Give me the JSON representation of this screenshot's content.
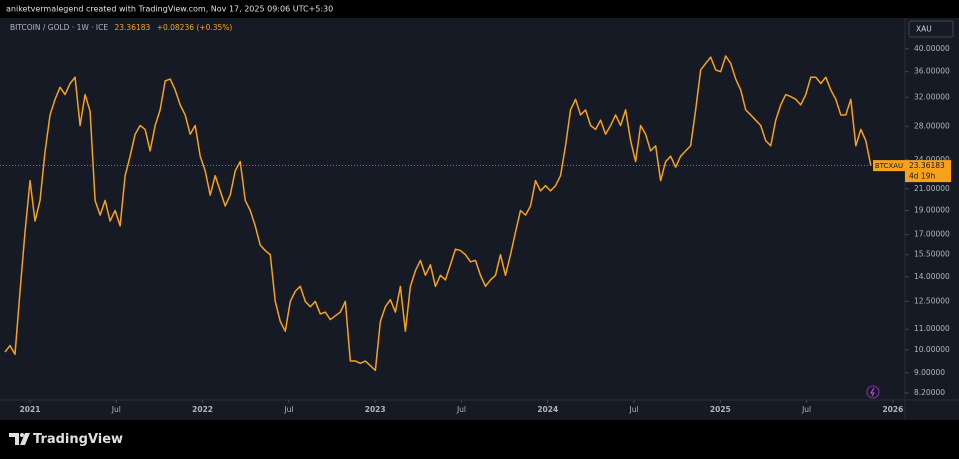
{
  "top_bar": {
    "text": "aniketvermalegend created with TradingView.com, Nov 17, 2025 09:06 UTC+5:30"
  },
  "chart_data": {
    "type": "line",
    "title": "BITCOIN / GOLD · 1W · ICE",
    "header_value": "23.36183",
    "header_change": "+0.08236 (+0.35%)",
    "currency": "XAU",
    "price_tag": {
      "symbol": "BTCXAU",
      "value": "23.36183",
      "countdown": "4d 19h"
    },
    "log_scale": true,
    "grid": false,
    "xlim": [
      2020.826,
      2026.07
    ],
    "xticks": [
      2021,
      {
        "value": 2021.5,
        "label": "Jul"
      },
      2022,
      {
        "value": 2022.5,
        "label": "Jul"
      },
      2023,
      {
        "value": 2023.5,
        "label": "Jul"
      },
      2024,
      {
        "value": 2024.5,
        "label": "Jul"
      },
      2025,
      {
        "value": 2025.5,
        "label": "Jul"
      },
      2026
    ],
    "ylim": [
      7.94,
      46.1
    ],
    "yticks": [
      {
        "value": 8.2,
        "label": "8.20000"
      },
      {
        "value": 9,
        "label": "9.00000"
      },
      {
        "value": 10,
        "label": "10.00000"
      },
      {
        "value": 11,
        "label": "11.00000"
      },
      {
        "value": 12.5,
        "label": "12.50000"
      },
      {
        "value": 14,
        "label": "14.00000"
      },
      {
        "value": 15.5,
        "label": "15.50000"
      },
      {
        "value": 17,
        "label": "17.00000"
      },
      {
        "value": 19,
        "label": "19.00000"
      },
      {
        "value": 21,
        "label": "21.00000"
      },
      {
        "value": 24,
        "label": "24.00000"
      },
      {
        "value": 28,
        "label": "28.00000"
      },
      {
        "value": 32,
        "label": "32.00000"
      },
      {
        "value": 36,
        "label": "36.00000"
      },
      {
        "value": 40,
        "label": "40.00000"
      }
    ],
    "x": [
      2020.855,
      2020.884,
      2020.913,
      2020.942,
      2020.971,
      2021.0,
      2021.029,
      2021.058,
      2021.087,
      2021.116,
      2021.145,
      2021.174,
      2021.203,
      2021.232,
      2021.261,
      2021.29,
      2021.319,
      2021.348,
      2021.377,
      2021.406,
      2021.435,
      2021.464,
      2021.493,
      2021.522,
      2021.551,
      2021.58,
      2021.609,
      2021.638,
      2021.667,
      2021.696,
      2021.725,
      2021.754,
      2021.783,
      2021.812,
      2021.841,
      2021.87,
      2021.899,
      2021.928,
      2021.957,
      2021.986,
      2022.015,
      2022.044,
      2022.073,
      2022.102,
      2022.131,
      2022.16,
      2022.189,
      2022.218,
      2022.247,
      2022.276,
      2022.305,
      2022.334,
      2022.363,
      2022.392,
      2022.421,
      2022.45,
      2022.479,
      2022.508,
      2022.537,
      2022.566,
      2022.595,
      2022.624,
      2022.653,
      2022.682,
      2022.711,
      2022.74,
      2022.769,
      2022.798,
      2022.827,
      2022.856,
      2022.885,
      2022.914,
      2022.943,
      2022.972,
      2023.001,
      2023.03,
      2023.059,
      2023.088,
      2023.117,
      2023.146,
      2023.175,
      2023.204,
      2023.233,
      2023.262,
      2023.291,
      2023.32,
      2023.349,
      2023.378,
      2023.407,
      2023.436,
      2023.465,
      2023.494,
      2023.523,
      2023.552,
      2023.581,
      2023.61,
      2023.639,
      2023.668,
      2023.697,
      2023.726,
      2023.755,
      2023.784,
      2023.813,
      2023.842,
      2023.871,
      2023.9,
      2023.929,
      2023.958,
      2023.987,
      2024.016,
      2024.045,
      2024.074,
      2024.103,
      2024.132,
      2024.161,
      2024.19,
      2024.219,
      2024.248,
      2024.277,
      2024.306,
      2024.335,
      2024.364,
      2024.393,
      2024.422,
      2024.451,
      2024.48,
      2024.509,
      2024.538,
      2024.567,
      2024.596,
      2024.625,
      2024.654,
      2024.683,
      2024.712,
      2024.741,
      2024.77,
      2024.799,
      2024.828,
      2024.857,
      2024.886,
      2024.915,
      2024.944,
      2024.973,
      2025.002,
      2025.031,
      2025.06,
      2025.089,
      2025.118,
      2025.147,
      2025.176,
      2025.205,
      2025.234,
      2025.263,
      2025.292,
      2025.321,
      2025.35,
      2025.379,
      2025.408,
      2025.437,
      2025.466,
      2025.495,
      2025.524,
      2025.553,
      2025.582,
      2025.611,
      2025.64,
      2025.669,
      2025.698,
      2025.727,
      2025.756,
      2025.785,
      2025.814,
      2025.843,
      2025.872
    ],
    "series": [
      {
        "name": "BTCXAU",
        "color": "#f7a21b",
        "values": [
          9.9,
          10.2,
          9.8,
          13.1,
          17.2,
          21.8,
          18.1,
          19.9,
          24.9,
          29.5,
          31.7,
          33.5,
          32.4,
          34.1,
          35.1,
          28.1,
          32.4,
          30.0,
          19.9,
          18.6,
          19.9,
          18.1,
          19.0,
          17.7,
          22.3,
          24.4,
          27.0,
          28.1,
          27.6,
          25.0,
          28.1,
          30.2,
          34.5,
          34.8,
          33.1,
          30.9,
          29.5,
          27.0,
          28.1,
          24.4,
          22.8,
          20.4,
          22.3,
          20.8,
          19.4,
          20.4,
          22.8,
          23.8,
          19.9,
          19.0,
          17.7,
          16.2,
          15.8,
          15.5,
          12.5,
          11.4,
          10.9,
          12.5,
          13.1,
          13.4,
          12.5,
          12.2,
          12.5,
          11.8,
          11.9,
          11.5,
          11.7,
          11.9,
          12.5,
          9.5,
          9.5,
          9.4,
          9.5,
          9.3,
          9.1,
          11.4,
          12.2,
          12.6,
          11.9,
          13.4,
          10.9,
          13.4,
          14.4,
          15.1,
          14.1,
          14.8,
          13.4,
          14.1,
          13.8,
          14.8,
          15.9,
          15.8,
          15.5,
          15.0,
          15.1,
          14.1,
          13.4,
          13.8,
          14.1,
          15.5,
          14.1,
          15.5,
          17.2,
          19.0,
          18.6,
          19.4,
          21.8,
          20.8,
          21.3,
          20.8,
          21.3,
          22.3,
          25.6,
          30.2,
          31.7,
          29.5,
          30.2,
          28.1,
          27.6,
          28.8,
          27.0,
          28.1,
          29.5,
          28.1,
          30.2,
          26.2,
          23.8,
          28.1,
          27.0,
          25.0,
          25.6,
          21.8,
          23.8,
          24.4,
          23.2,
          24.4,
          25.0,
          25.6,
          30.2,
          36.3,
          37.4,
          38.5,
          36.3,
          36.0,
          38.7,
          37.4,
          34.8,
          33.1,
          30.2,
          29.5,
          28.8,
          28.1,
          26.2,
          25.6,
          28.8,
          30.9,
          32.4,
          32.1,
          31.7,
          30.9,
          32.4,
          35.1,
          35.1,
          34.1,
          35.1,
          33.1,
          31.7,
          29.5,
          29.5,
          31.7,
          25.6,
          27.6,
          26.2,
          23.36183
        ]
      }
    ]
  },
  "footer": {
    "brand": "TradingView"
  }
}
